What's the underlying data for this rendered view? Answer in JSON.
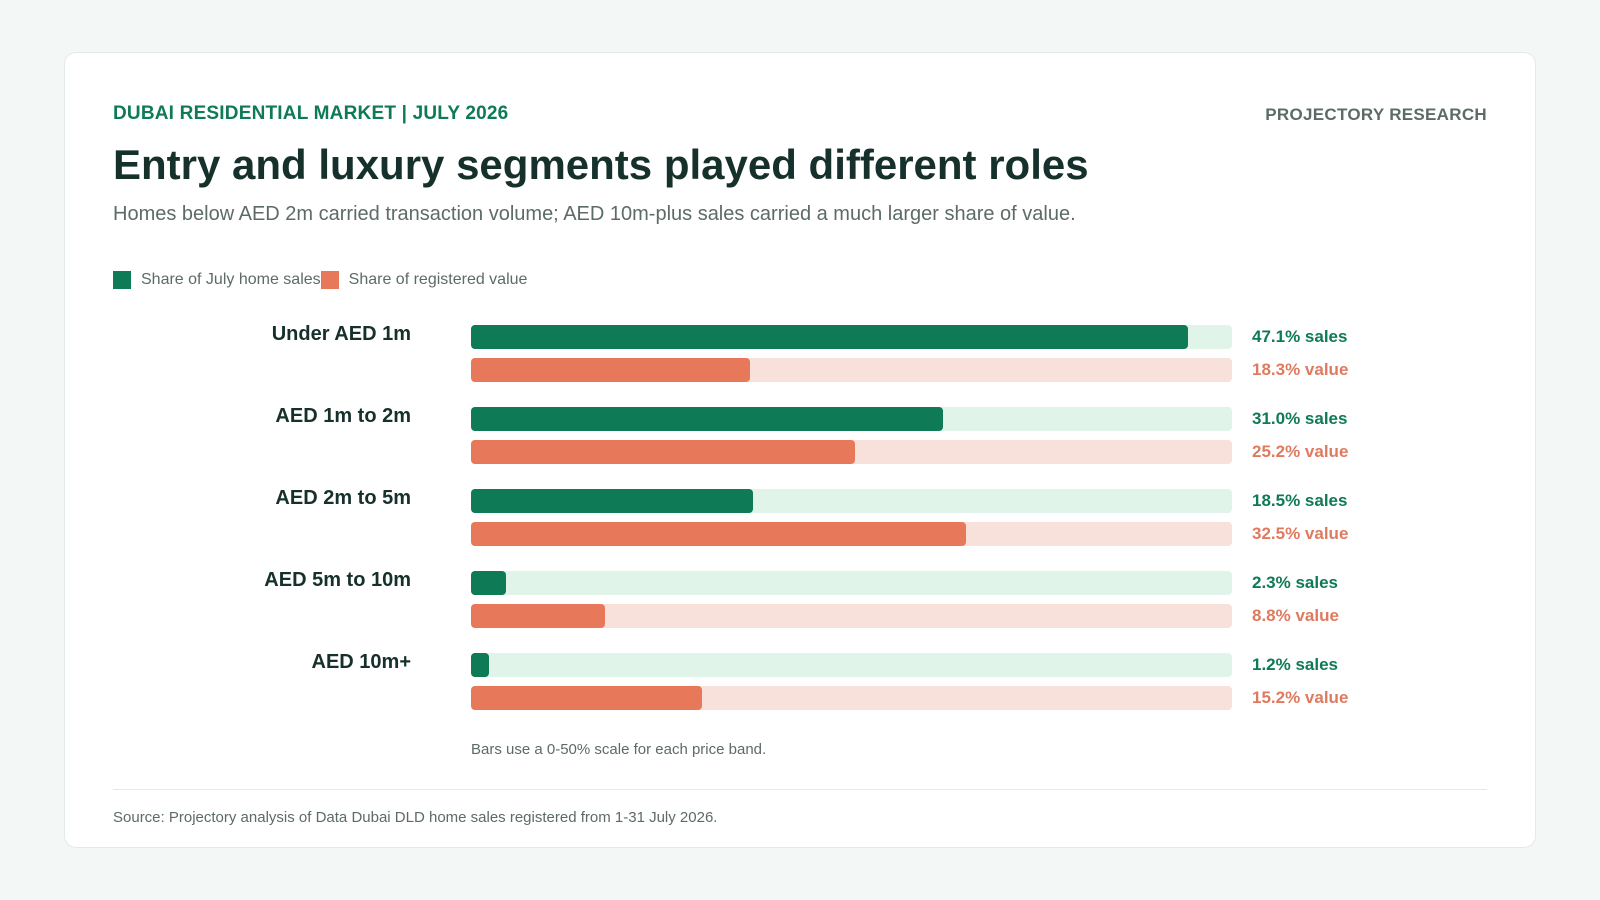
{
  "header": {
    "kicker": "DUBAI RESIDENTIAL MARKET | JULY 2026",
    "brand": "PROJECTORY RESEARCH",
    "title": "Entry and luxury segments played different roles",
    "subtitle": "Homes below AED 2m carried transaction volume; AED 10m-plus sales carried a much larger share of value."
  },
  "legend": {
    "sales": "Share of July home sales",
    "value": "Share of registered value"
  },
  "colors": {
    "sales": "#0e7a56",
    "sales_track": "#e1f4ea",
    "value": "#e8785a",
    "value_track": "#f8e1da"
  },
  "chart_data": {
    "type": "bar",
    "orientation": "horizontal",
    "categories": [
      "Under AED 1m",
      "AED 1m to 2m",
      "AED 2m to 5m",
      "AED 5m to 10m",
      "AED 10m+"
    ],
    "series": [
      {
        "name": "Share of July home sales",
        "values": [
          47.1,
          31.0,
          18.5,
          2.3,
          1.2
        ],
        "labels": [
          "47.1% sales",
          "31.0% sales",
          "18.5% sales",
          "2.3% sales",
          "1.2% sales"
        ]
      },
      {
        "name": "Share of registered value",
        "values": [
          18.3,
          25.2,
          32.5,
          8.8,
          15.2
        ],
        "labels": [
          "18.3% value",
          "25.2% value",
          "32.5% value",
          "8.8% value",
          "15.2% value"
        ]
      }
    ],
    "xlim": [
      0,
      50
    ],
    "grid": false,
    "legend_position": "top-left"
  },
  "notes": {
    "scale": "Bars use a 0-50% scale for each price band.",
    "source": "Source: Projectory analysis of Data Dubai DLD home sales registered from 1-31 July 2026."
  }
}
